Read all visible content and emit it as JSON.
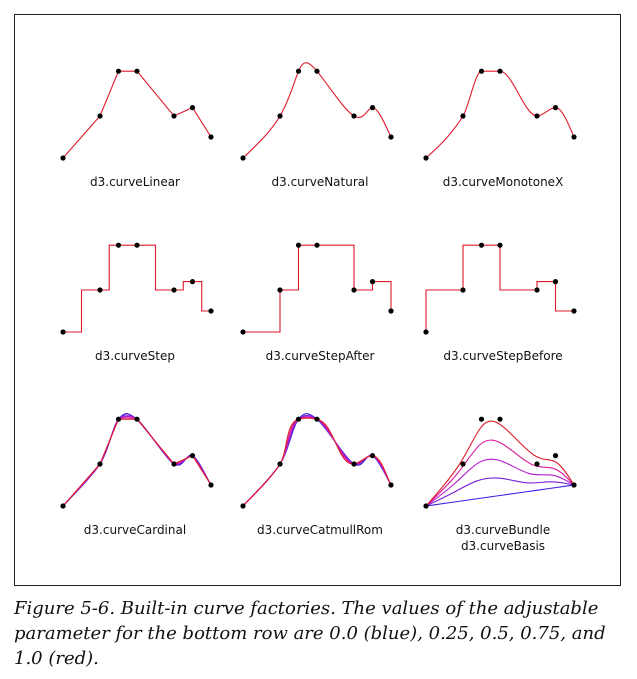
{
  "figure": {
    "caption": "Figure 5-6. Built-in curve factories. The values of the adjustable parameter for the bottom row are 0.0 (blue), 0.25, 0.5, 0.75, and 1.0 (red).",
    "panels": [
      {
        "label": "d3.curveLinear",
        "curve": "linear"
      },
      {
        "label": "d3.curveNatural",
        "curve": "natural"
      },
      {
        "label": "d3.curveMonotoneX",
        "curve": "monotoneX"
      },
      {
        "label": "d3.curveStep",
        "curve": "step"
      },
      {
        "label": "d3.curveStepAfter",
        "curve": "stepAfter"
      },
      {
        "label": "d3.curveStepBefore",
        "curve": "stepBefore"
      },
      {
        "label": "d3.curveCardinal",
        "curve": "cardinal"
      },
      {
        "label": "d3.curveCatmullRom",
        "curve": "catmullRom"
      },
      {
        "label": "d3.curveBundle",
        "label2": "d3.curveBasis",
        "curve": "bundle"
      }
    ],
    "parameter_values": [
      0.0,
      0.25,
      0.5,
      0.75,
      1.0
    ],
    "parameter_colors": [
      "#3b1fe0",
      "#7a1fd6",
      "#b31fcf",
      "#d91a9a",
      "#e0182a"
    ],
    "curve_color": "#e0182a",
    "point_color": "#000000",
    "data_points": [
      [
        0,
        0
      ],
      [
        2,
        1.5
      ],
      [
        3,
        3.1
      ],
      [
        4,
        3.1
      ],
      [
        6,
        1.5
      ],
      [
        7,
        1.8
      ],
      [
        8,
        0.75
      ]
    ]
  }
}
